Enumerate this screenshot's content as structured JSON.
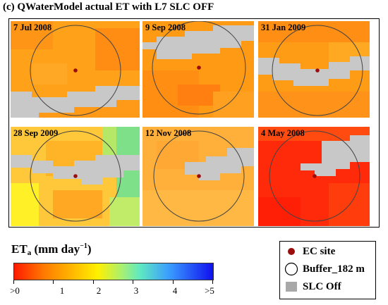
{
  "title": "(c) QWaterModel actual ET with L7 SLC OFF",
  "panels": [
    {
      "date": "7 Jul 2008"
    },
    {
      "date": "9 Sep 2008"
    },
    {
      "date": "31 Jan 2009"
    },
    {
      "date": "28 Sep 2009"
    },
    {
      "date": "12 Nov 2008"
    },
    {
      "date": "4 May 2008"
    }
  ],
  "colorbar": {
    "title_main": "ET",
    "title_sub": "a",
    "title_units": "(mm day",
    "title_sup": "−1",
    "title_close": ")",
    "tick_labels": [
      ">0",
      "1",
      "2",
      "3",
      "4",
      ">5"
    ],
    "range": [
      0,
      5
    ]
  },
  "legend": {
    "ec_site": "EC site",
    "buffer": "Buffer_182 m",
    "slc_off": "SLC Off"
  },
  "colors": {
    "ec_site": "#9b0d0d",
    "slc_off": "#c8c8c8",
    "buffer_line": "#444444"
  }
}
